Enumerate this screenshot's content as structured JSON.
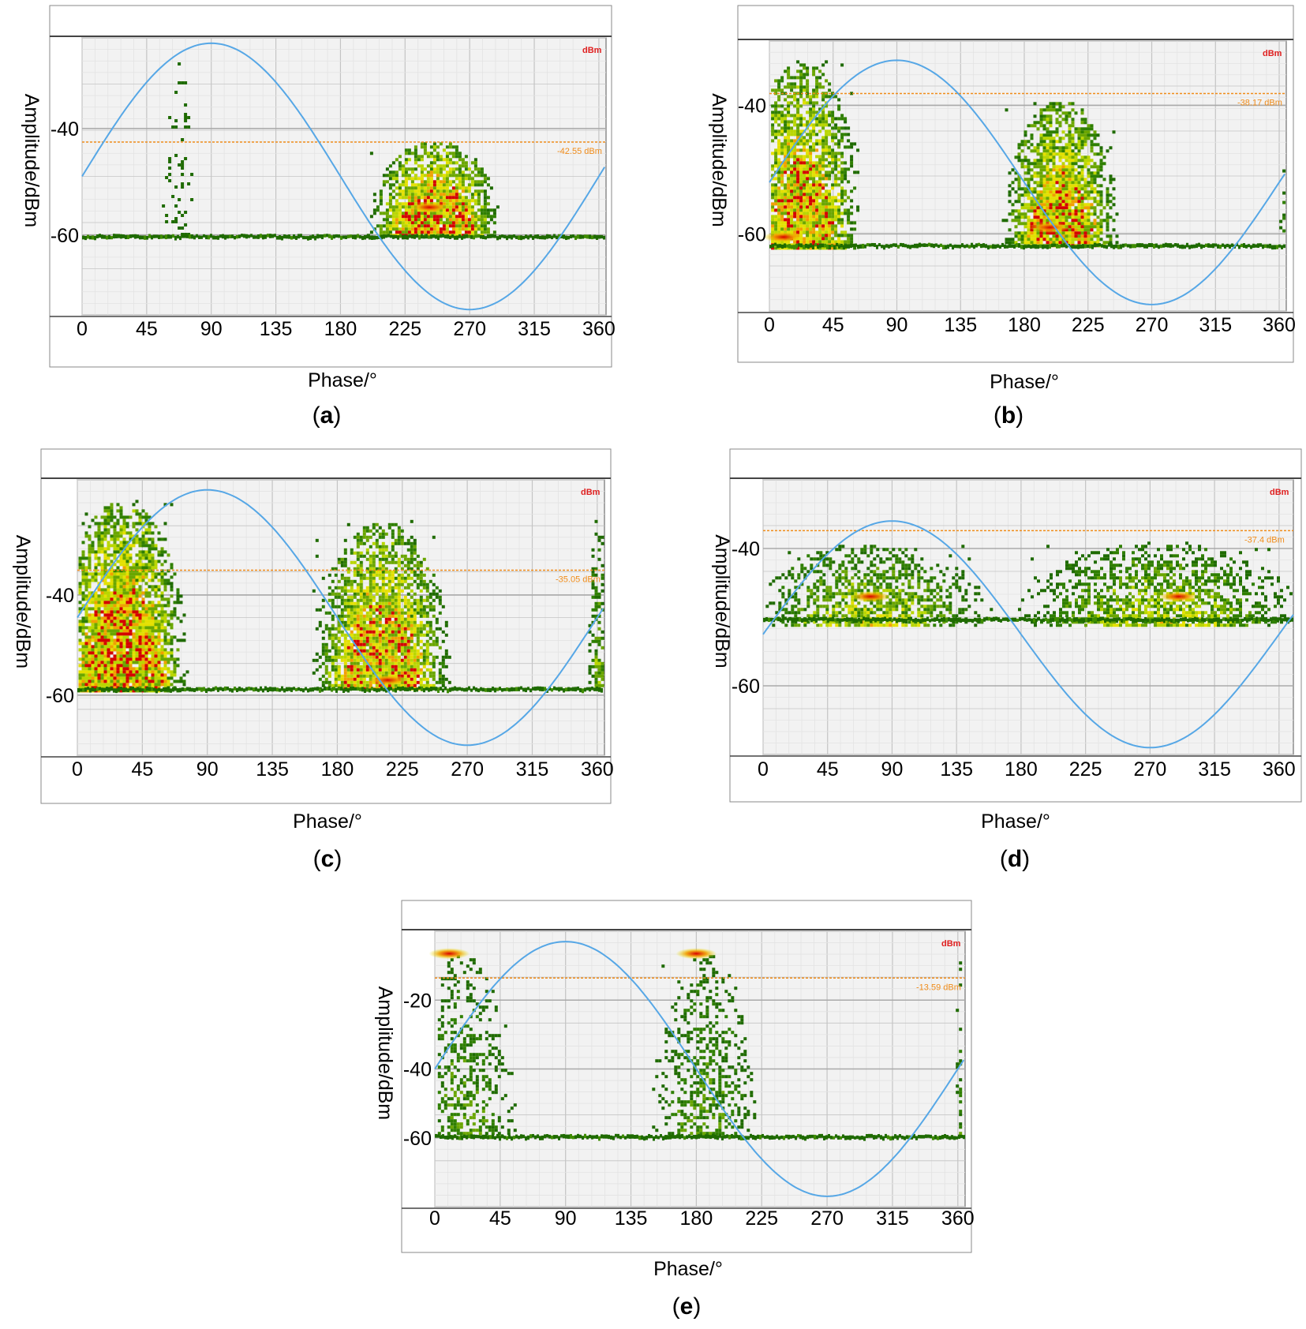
{
  "chart_data": [
    {
      "type": "scatter",
      "panel_label": "a",
      "xlabel": "Phase/°",
      "ylabel": "Amplitude/dBm",
      "x_ticks": [
        "0",
        "45",
        "90",
        "135",
        "180",
        "225",
        "270",
        "315",
        "360"
      ],
      "y_ticks": [
        {
          "label": "-40",
          "value": -40
        },
        {
          "label": "-60",
          "value": -60
        }
      ],
      "xlim": [
        0,
        365
      ],
      "ylim": [
        -75,
        -23
      ],
      "unit_badge": "dBm",
      "threshold": {
        "value": -42.55,
        "label": "-42.55 dBm"
      },
      "noise_floor": -60.5,
      "sine": {
        "peak": -24,
        "trough": -74,
        "phase_shift": 0
      },
      "clusters": [
        {
          "center_x": 66,
          "x_spread": 9,
          "top": -27,
          "base": -60,
          "density": 0.35
        },
        {
          "center_x": 245,
          "x_spread": 38,
          "top": -42,
          "base": -60,
          "density": 2.6,
          "hotspot": {
            "x": 242,
            "y": -54.8
          }
        }
      ],
      "grid": true
    },
    {
      "type": "scatter",
      "panel_label": "b",
      "xlabel": "Phase/°",
      "ylabel": "Amplitude/dBm",
      "x_ticks": [
        "0",
        "45",
        "90",
        "135",
        "180",
        "225",
        "270",
        "315",
        "360"
      ],
      "y_ticks": [
        {
          "label": "-40",
          "value": -40
        },
        {
          "label": "-60",
          "value": -60
        }
      ],
      "xlim": [
        0,
        365
      ],
      "ylim": [
        -72,
        -30
      ],
      "unit_badge": "dBm",
      "threshold": {
        "value": -38.17,
        "label": "-38.17 dBm"
      },
      "noise_floor": -62,
      "sine": {
        "peak": -33,
        "trough": -71,
        "phase_shift": 0
      },
      "clusters": [
        {
          "center_x": 22,
          "x_spread": 34,
          "top": -33,
          "base": -62,
          "density": 2.4,
          "hotspot": {
            "x": 10,
            "y": -60.5
          }
        },
        {
          "center_x": 205,
          "x_spread": 34,
          "top": -39,
          "base": -62,
          "density": 2.4,
          "hotspot": {
            "x": 198,
            "y": -59
          }
        },
        {
          "center_x": 362,
          "x_spread": 3,
          "top": -48,
          "base": -62,
          "density": 0.8
        }
      ],
      "grid": true
    },
    {
      "type": "scatter",
      "panel_label": "c",
      "xlabel": "Phase/°",
      "ylabel": "Amplitude/dBm",
      "x_ticks": [
        "0",
        "45",
        "90",
        "135",
        "180",
        "225",
        "270",
        "315",
        "360"
      ],
      "y_ticks": [
        {
          "label": "-40",
          "value": -40
        },
        {
          "label": "-60",
          "value": -60
        }
      ],
      "xlim": [
        0,
        365
      ],
      "ylim": [
        -72,
        -17
      ],
      "unit_badge": "dBm",
      "threshold": {
        "value": -35.05,
        "label": "-35.05 dBm"
      },
      "noise_floor": -59,
      "sine": {
        "peak": -19,
        "trough": -70,
        "phase_shift": 0
      },
      "clusters": [
        {
          "center_x": 30,
          "x_spread": 38,
          "top": -21,
          "base": -59,
          "density": 2.6
        },
        {
          "center_x": 210,
          "x_spread": 40,
          "top": -25,
          "base": -59,
          "density": 2.4,
          "hotspot": {
            "x": 215,
            "y": -57
          }
        },
        {
          "center_x": 360,
          "x_spread": 6,
          "top": -25,
          "base": -59,
          "density": 1.2
        }
      ],
      "grid": true
    },
    {
      "type": "scatter",
      "panel_label": "d",
      "xlabel": "Phase/°",
      "ylabel": "Amplitude/dBm",
      "x_ticks": [
        "0",
        "45",
        "90",
        "135",
        "180",
        "225",
        "270",
        "315",
        "360"
      ],
      "y_ticks": [
        {
          "label": "-40",
          "value": -40
        },
        {
          "label": "-60",
          "value": -60
        }
      ],
      "xlim": [
        0,
        370
      ],
      "ylim": [
        -70,
        -30
      ],
      "unit_badge": "dBm",
      "threshold": {
        "value": -37.4,
        "label": "-37.4 dBm"
      },
      "noise_floor": -50.5,
      "sine": {
        "peak": -36,
        "trough": -69,
        "phase_shift": 0
      },
      "clusters": [
        {
          "center_x": 75,
          "x_spread": 68,
          "top": -39,
          "base": -51,
          "density": 1.5,
          "hotspot": {
            "x": 75,
            "y": -47
          }
        },
        {
          "center_x": 275,
          "x_spread": 82,
          "top": -39,
          "base": -51,
          "density": 1.5,
          "hotspot": {
            "x": 290,
            "y": -47
          }
        }
      ],
      "grid": true
    },
    {
      "type": "scatter",
      "panel_label": "e",
      "xlabel": "Phase/°",
      "ylabel": "Amplitude/dBm",
      "x_ticks": [
        "0",
        "45",
        "90",
        "135",
        "180",
        "225",
        "270",
        "315",
        "360"
      ],
      "y_ticks": [
        {
          "label": "-20",
          "value": -20
        },
        {
          "label": "-40",
          "value": -40
        },
        {
          "label": "-60",
          "value": -60
        }
      ],
      "xlim": [
        0,
        365
      ],
      "ylim": [
        -80,
        0
      ],
      "unit_badge": "dBm",
      "threshold": {
        "value": -13.59,
        "label": "-13.59 dBm"
      },
      "noise_floor": -60,
      "sine": {
        "peak": -3,
        "trough": -77,
        "phase_shift": 0
      },
      "clusters": [
        {
          "center_x": 18,
          "x_spread": 30,
          "top": -6,
          "base": -60,
          "density": 1.0,
          "hotspot": {
            "x": 10,
            "y": -6.5
          }
        },
        {
          "center_x": 185,
          "x_spread": 30,
          "top": -6,
          "base": -60,
          "density": 1.0,
          "hotspot": {
            "x": 180,
            "y": -6.5
          }
        },
        {
          "center_x": 362,
          "x_spread": 4,
          "top": -6,
          "base": -60,
          "density": 0.8
        }
      ],
      "grid": true
    }
  ]
}
